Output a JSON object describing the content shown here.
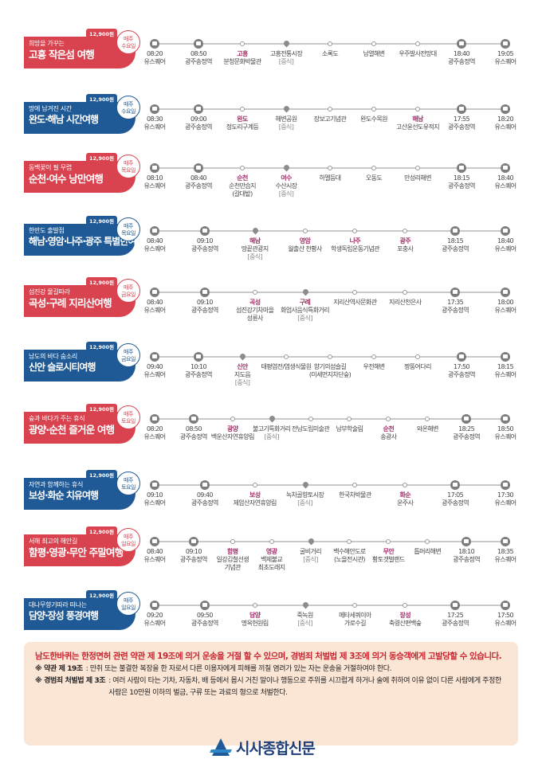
{
  "colors": {
    "red": "#d9434f",
    "blue": "#1f5a96",
    "highlight": "#a5306b",
    "line": "#c9c9c9",
    "notice_bg": "#fbe5d5",
    "notice_head": "#c8242f"
  },
  "routes": [
    {
      "color": "red",
      "price": "12,900원",
      "day": [
        "매주",
        "수요일"
      ],
      "sub": "희망을 가꾸는",
      "title": "고흥 작은섬 여행",
      "stops": [
        {
          "type": "bus",
          "time": "08:20",
          "name": "유스퀘어"
        },
        {
          "type": "bus",
          "time": "08:50",
          "name": "광주송정역"
        },
        {
          "type": "dot",
          "name": "고흥",
          "hl": true,
          "extra": "분청문화박물관"
        },
        {
          "type": "pin",
          "name": "고흥전통시장",
          "note": "[중식]"
        },
        {
          "type": "dot",
          "name": "소록도"
        },
        {
          "type": "dot",
          "name": "남열해변"
        },
        {
          "type": "dot",
          "name": "우주발사전망대"
        },
        {
          "type": "bus",
          "time": "18:40",
          "name": "광주송정역"
        },
        {
          "type": "bus",
          "time": "19:05",
          "name": "유스퀘어"
        }
      ]
    },
    {
      "color": "blue",
      "price": "12,900원",
      "day": [
        "매주",
        "수요일"
      ],
      "sub": "땅에 남겨진 시간",
      "title": "완도·해남 시간여행",
      "stops": [
        {
          "type": "bus",
          "time": "08:30",
          "name": "유스퀘어"
        },
        {
          "type": "bus",
          "time": "09:00",
          "name": "광주송정역"
        },
        {
          "type": "dot",
          "name": "완도",
          "hl": true,
          "extra": "정도리구계등"
        },
        {
          "type": "pin",
          "name": "해변공원",
          "note": "[중식]"
        },
        {
          "type": "dot",
          "name": "장보고기념관"
        },
        {
          "type": "dot",
          "name": "완도수목원"
        },
        {
          "type": "dot",
          "name": "해남",
          "hl": true,
          "extra": "고산윤선도유적지"
        },
        {
          "type": "bus",
          "time": "17:55",
          "name": "광주송정역"
        },
        {
          "type": "bus",
          "time": "18:20",
          "name": "유스퀘어"
        }
      ]
    },
    {
      "color": "red",
      "price": "12,900원",
      "day": [
        "매주",
        "목요일"
      ],
      "sub": "동백꽃이 필 무렵",
      "title": "순천·여수 낭만여행",
      "stops": [
        {
          "type": "bus",
          "time": "08:10",
          "name": "유스퀘어"
        },
        {
          "type": "bus",
          "time": "08:40",
          "name": "광주송정역"
        },
        {
          "type": "dot",
          "name": "순천",
          "hl": true,
          "extra": "순천만습지",
          "extra2": "(갈대밭)"
        },
        {
          "type": "pin",
          "name": "여수",
          "hl": true,
          "extra": "수산시장",
          "note": "[중식]"
        },
        {
          "type": "dot",
          "name": "하멜등대"
        },
        {
          "type": "dot",
          "name": "오동도"
        },
        {
          "type": "dot",
          "name": "만성리해변"
        },
        {
          "type": "bus",
          "time": "18:15",
          "name": "광주송정역"
        },
        {
          "type": "bus",
          "time": "18:40",
          "name": "유스퀘어"
        }
      ]
    },
    {
      "color": "blue",
      "price": "12,900원",
      "day": [
        "매주",
        "목요일"
      ],
      "sub": "한반도 출발점",
      "title": "해남·영암·나주·광주 특별한여행",
      "stops": [
        {
          "type": "bus",
          "time": "08:40",
          "name": "유스퀘어"
        },
        {
          "type": "bus",
          "time": "09:10",
          "name": "광주송정역"
        },
        {
          "type": "pin",
          "name": "해남",
          "hl": true,
          "extra": "땅끝관광지",
          "note": "[중식]"
        },
        {
          "type": "dot",
          "name": "영암",
          "hl": true,
          "extra": "월출산 천황사"
        },
        {
          "type": "dot",
          "name": "나주",
          "hl": true,
          "extra": "학생독립운동기념관"
        },
        {
          "type": "dot",
          "name": "광주",
          "hl": true,
          "extra": "포충사"
        },
        {
          "type": "bus",
          "time": "18:15",
          "name": "광주송정역"
        },
        {
          "type": "bus",
          "time": "18:40",
          "name": "유스퀘어"
        }
      ]
    },
    {
      "color": "red",
      "price": "12,900원",
      "day": [
        "매주",
        "금요일"
      ],
      "sub": "섬진강 물길따라",
      "title": "곡성·구례 지리산여행",
      "stops": [
        {
          "type": "bus",
          "time": "08:40",
          "name": "유스퀘어"
        },
        {
          "type": "bus",
          "time": "09:10",
          "name": "광주송정역"
        },
        {
          "type": "dot",
          "name": "곡성",
          "hl": true,
          "extra": "섬진강기차마을",
          "extra2": "성륜사"
        },
        {
          "type": "pin",
          "name": "구례",
          "hl": true,
          "extra": "화엄사음식특화거리",
          "note": "[중식]"
        },
        {
          "type": "dot",
          "name": "지리산역사문화관"
        },
        {
          "type": "dot",
          "name": "지리산천은사"
        },
        {
          "type": "bus",
          "time": "17:35",
          "name": "광주송정역"
        },
        {
          "type": "bus",
          "time": "18:00",
          "name": "유스퀘어"
        }
      ]
    },
    {
      "color": "blue",
      "price": "12,900원",
      "day": [
        "매주",
        "금요일"
      ],
      "sub": "남도의 바다 숨소리",
      "title": "신안 슬로시티여행",
      "stops": [
        {
          "type": "bus",
          "time": "09:40",
          "name": "유스퀘어"
        },
        {
          "type": "bus",
          "time": "10:10",
          "name": "광주송정역"
        },
        {
          "type": "pin",
          "name": "신안",
          "hl": true,
          "extra": "지도읍",
          "note": "[중식]"
        },
        {
          "type": "dot",
          "name": "태평염전/염생식물원"
        },
        {
          "type": "dot",
          "name": "향기의섬슬길",
          "extra": "(미세먼지차단숲)"
        },
        {
          "type": "dot",
          "name": "우전해변"
        },
        {
          "type": "dot",
          "name": "짱뚱어다리"
        },
        {
          "type": "bus",
          "time": "17:50",
          "name": "광주송정역"
        },
        {
          "type": "bus",
          "time": "18:15",
          "name": "유스퀘어"
        }
      ]
    },
    {
      "color": "red",
      "price": "12,900원",
      "day": [
        "매주",
        "토요일"
      ],
      "sub": "숲과 바다가 주는 휴식",
      "title": "광양·순천 즐거운 여행",
      "stops": [
        {
          "type": "bus",
          "time": "08:20",
          "name": "유스퀘어"
        },
        {
          "type": "bus",
          "time": "08:50",
          "name": "광주송정역"
        },
        {
          "type": "dot",
          "name": "광양",
          "hl": true,
          "extra": "백운산자연휴양림"
        },
        {
          "type": "pin",
          "name": "불고기특화거리",
          "note": "[중식]"
        },
        {
          "type": "dot",
          "name": "전남도립미술관"
        },
        {
          "type": "dot",
          "name": "남부학술림"
        },
        {
          "type": "dot",
          "name": "순천",
          "hl": true,
          "extra": "송광사"
        },
        {
          "type": "dot",
          "name": "와온해변"
        },
        {
          "type": "bus",
          "time": "18:25",
          "name": "광주송정역"
        },
        {
          "type": "bus",
          "time": "18:50",
          "name": "유스퀘어"
        }
      ]
    },
    {
      "color": "blue",
      "price": "12,900원",
      "day": [
        "매주",
        "토요일"
      ],
      "sub": "자연과 함께하는 휴식",
      "title": "보성·화순 치유여행",
      "stops": [
        {
          "type": "bus",
          "time": "09:10",
          "name": "유스퀘어"
        },
        {
          "type": "bus",
          "time": "09:40",
          "name": "광주송정역"
        },
        {
          "type": "dot",
          "name": "보성",
          "hl": true,
          "extra": "제암산자연휴양림"
        },
        {
          "type": "pin",
          "name": "녹차골향토시장",
          "note": "[중식]"
        },
        {
          "type": "dot",
          "name": "한국차박물관"
        },
        {
          "type": "dot",
          "name": "화순",
          "hl": true,
          "extra": "운주사"
        },
        {
          "type": "bus",
          "time": "17:05",
          "name": "광주송정역"
        },
        {
          "type": "bus",
          "time": "17:30",
          "name": "유스퀘어"
        }
      ]
    },
    {
      "color": "red",
      "price": "12,900원",
      "day": [
        "매주",
        "일요일"
      ],
      "sub": "서해 최고의 해안길",
      "title": "함평·영광·무안 주말여행",
      "stops": [
        {
          "type": "bus",
          "time": "08:40",
          "name": "유스퀘어"
        },
        {
          "type": "bus",
          "time": "09:10",
          "name": "광주송정역"
        },
        {
          "type": "dot",
          "name": "함평",
          "hl": true,
          "extra": "일강김철선생",
          "extra2": "기념관"
        },
        {
          "type": "dot",
          "name": "영광",
          "hl": true,
          "extra": "백제불교",
          "extra2": "최초도래지"
        },
        {
          "type": "pin",
          "name": "굴비거리",
          "note": "[중식]"
        },
        {
          "type": "dot",
          "name": "백수해안도로",
          "extra": "(노을전시관)"
        },
        {
          "type": "dot",
          "name": "무안",
          "hl": true,
          "extra": "황토갯벌랜드"
        },
        {
          "type": "dot",
          "name": "톱머리해변"
        },
        {
          "type": "bus",
          "time": "18:10",
          "name": "광주송정역"
        },
        {
          "type": "bus",
          "time": "18:35",
          "name": "유스퀘어"
        }
      ]
    },
    {
      "color": "blue",
      "price": "12,900원",
      "day": [
        "매주",
        "일요일"
      ],
      "sub": "대나무향기따라 떠나는",
      "title": "담양·장성 풍경여행",
      "stops": [
        {
          "type": "bus",
          "time": "09:20",
          "name": "유스퀘어"
        },
        {
          "type": "bus",
          "time": "09:50",
          "name": "광주송정역"
        },
        {
          "type": "dot",
          "name": "담양",
          "hl": true,
          "extra": "명옥헌원림"
        },
        {
          "type": "pin",
          "name": "죽녹원",
          "note": "[중식]"
        },
        {
          "type": "dot",
          "name": "메타세쿼이아",
          "extra": "가로수길"
        },
        {
          "type": "dot",
          "name": "장성",
          "hl": true,
          "extra": "축령산편백숲"
        },
        {
          "type": "bus",
          "time": "17:25",
          "name": "광주송정역"
        },
        {
          "type": "bus",
          "time": "17:50",
          "name": "유스퀘어"
        }
      ]
    }
  ],
  "notice": {
    "head": "남도한바퀴는 한정면허 관련 약관 제 19조에 의거 운송을 거절 할 수 있으며, 경범죄 처벌법 제 3조에 의거 동승객에게 고발당할 수 있습니다.",
    "rule1_key": "※ 약관 제 19조",
    "rule1_val": ": 만취 또는 불결한 복장을 한 자로서 다른 이용자에게 피해를 끼칠 염려가 있는 자는 운송을 거절하여야 한다.",
    "rule2_key": "※ 경범죄 처벌법 제 3조",
    "rule2_val": ": 여러 사람이 타는 기차, 자동차, 배 등에서 몹시 거친 말이나 행동으로 주위를 시끄럽게 하거나 술에 취하여 이유 없이 다른 사람에게 주정한 사람은 10만원 이하의 벌금, 구류 또는 과료의 형으로 처벌한다."
  },
  "logo": {
    "text": "시사종합신문",
    "icon": "newspaper-logo-icon"
  }
}
